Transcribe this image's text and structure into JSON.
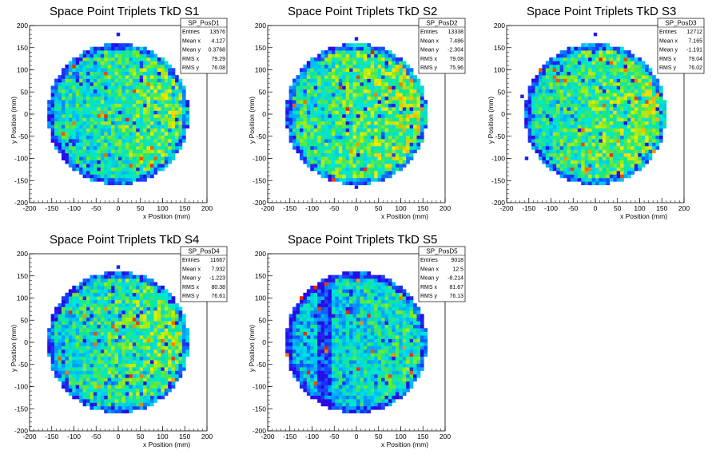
{
  "figure": {
    "background": "#ffffff"
  },
  "chart_data": [
    {
      "type": "heatmap",
      "title": "Space Point Triplets TkD S1",
      "xlabel": "x Position (mm)",
      "ylabel": "y Position (mm)",
      "xlim": [
        -200,
        200
      ],
      "ylim": [
        -200,
        200
      ],
      "xticks": [
        -200,
        -150,
        -100,
        -50,
        0,
        50,
        100,
        150,
        200
      ],
      "yticks": [
        -200,
        -150,
        -100,
        -50,
        0,
        50,
        100,
        150,
        200
      ],
      "stats": {
        "name": "SP_PosD1",
        "rows": [
          {
            "label": "Entries",
            "value": "13576"
          },
          {
            "label": "Mean x",
            "value": "4.127"
          },
          {
            "label": "Mean y",
            "value": "0.3768"
          },
          {
            "label": "RMS x",
            "value": "79.29"
          },
          {
            "label": "RMS y",
            "value": "76.08"
          }
        ]
      },
      "distribution": {
        "shape": "disk",
        "radius": 160,
        "bin": 8,
        "level": 0.55,
        "stray_bins": [
          [
            0,
            180
          ]
        ]
      }
    },
    {
      "type": "heatmap",
      "title": "Space Point Triplets TkD S2",
      "xlabel": "x Position (mm)",
      "ylabel": "y Position (mm)",
      "xlim": [
        -200,
        200
      ],
      "ylim": [
        -200,
        200
      ],
      "xticks": [
        -200,
        -150,
        -100,
        -50,
        0,
        50,
        100,
        150,
        200
      ],
      "yticks": [
        -200,
        -150,
        -100,
        -50,
        0,
        50,
        100,
        150,
        200
      ],
      "stats": {
        "name": "SP_PosD2",
        "rows": [
          {
            "label": "Entries",
            "value": "13338"
          },
          {
            "label": "Mean x",
            "value": "7.486"
          },
          {
            "label": "Mean y",
            "value": "-2.304"
          },
          {
            "label": "RMS x",
            "value": "79.08"
          },
          {
            "label": "RMS y",
            "value": "75.96"
          }
        ]
      },
      "distribution": {
        "shape": "disk",
        "radius": 160,
        "bin": 8,
        "level": 0.6,
        "stray_bins": [
          [
            0,
            170
          ],
          [
            0,
            -165
          ]
        ]
      }
    },
    {
      "type": "heatmap",
      "title": "Space Point Triplets TkD S3",
      "xlabel": "x Position (mm)",
      "ylabel": "y Position (mm)",
      "xlim": [
        -200,
        200
      ],
      "ylim": [
        -200,
        200
      ],
      "xticks": [
        -200,
        -150,
        -100,
        -50,
        0,
        50,
        100,
        150,
        200
      ],
      "yticks": [
        -200,
        -150,
        -100,
        -50,
        0,
        50,
        100,
        150,
        200
      ],
      "stats": {
        "name": "SP_PosD3",
        "rows": [
          {
            "label": "Entries",
            "value": "12712"
          },
          {
            "label": "Mean x",
            "value": "7.165"
          },
          {
            "label": "Mean y",
            "value": "-1.191"
          },
          {
            "label": "RMS x",
            "value": "79.04"
          },
          {
            "label": "RMS y",
            "value": "76.02"
          }
        ]
      },
      "distribution": {
        "shape": "disk",
        "radius": 160,
        "bin": 8,
        "level": 0.58,
        "stray_bins": [
          [
            0,
            180
          ],
          [
            -165,
            40
          ],
          [
            -155,
            -100
          ]
        ]
      }
    },
    {
      "type": "heatmap",
      "title": "Space Point Triplets TkD S4",
      "xlabel": "x Position (mm)",
      "ylabel": "y Position (mm)",
      "xlim": [
        -200,
        200
      ],
      "ylim": [
        -200,
        200
      ],
      "xticks": [
        -200,
        -150,
        -100,
        -50,
        0,
        50,
        100,
        150,
        200
      ],
      "yticks": [
        -200,
        -150,
        -100,
        -50,
        0,
        50,
        100,
        150,
        200
      ],
      "stats": {
        "name": "SP_PosD4",
        "rows": [
          {
            "label": "Entries",
            "value": "11667"
          },
          {
            "label": "Mean x",
            "value": "7.932"
          },
          {
            "label": "Mean y",
            "value": "-1.223"
          },
          {
            "label": "RMS x",
            "value": "80.38"
          },
          {
            "label": "RMS y",
            "value": "76.61"
          }
        ]
      },
      "distribution": {
        "shape": "disk",
        "radius": 160,
        "bin": 8,
        "level": 0.55,
        "stray_bins": [
          [
            0,
            170
          ]
        ]
      }
    },
    {
      "type": "heatmap",
      "title": "Space Point Triplets TkD S5",
      "xlabel": "x Position (mm)",
      "ylabel": "y Position (mm)",
      "xlim": [
        -200,
        200
      ],
      "ylim": [
        -200,
        200
      ],
      "xticks": [
        -200,
        -150,
        -100,
        -50,
        0,
        50,
        100,
        150,
        200
      ],
      "yticks": [
        -200,
        -150,
        -100,
        -50,
        0,
        50,
        100,
        150,
        200
      ],
      "stats": {
        "name": "SP_PosD5",
        "rows": [
          {
            "label": "Entries",
            "value": "9018"
          },
          {
            "label": "Mean x",
            "value": "12.5"
          },
          {
            "label": "Mean y",
            "value": "-8.214"
          },
          {
            "label": "RMS x",
            "value": "81.67"
          },
          {
            "label": "RMS y",
            "value": "76.13"
          }
        ]
      },
      "distribution": {
        "shape": "disk",
        "radius": 160,
        "bin": 8,
        "level": 0.45,
        "low_band": [
          -90,
          -60
        ],
        "stray_bins": []
      }
    }
  ]
}
